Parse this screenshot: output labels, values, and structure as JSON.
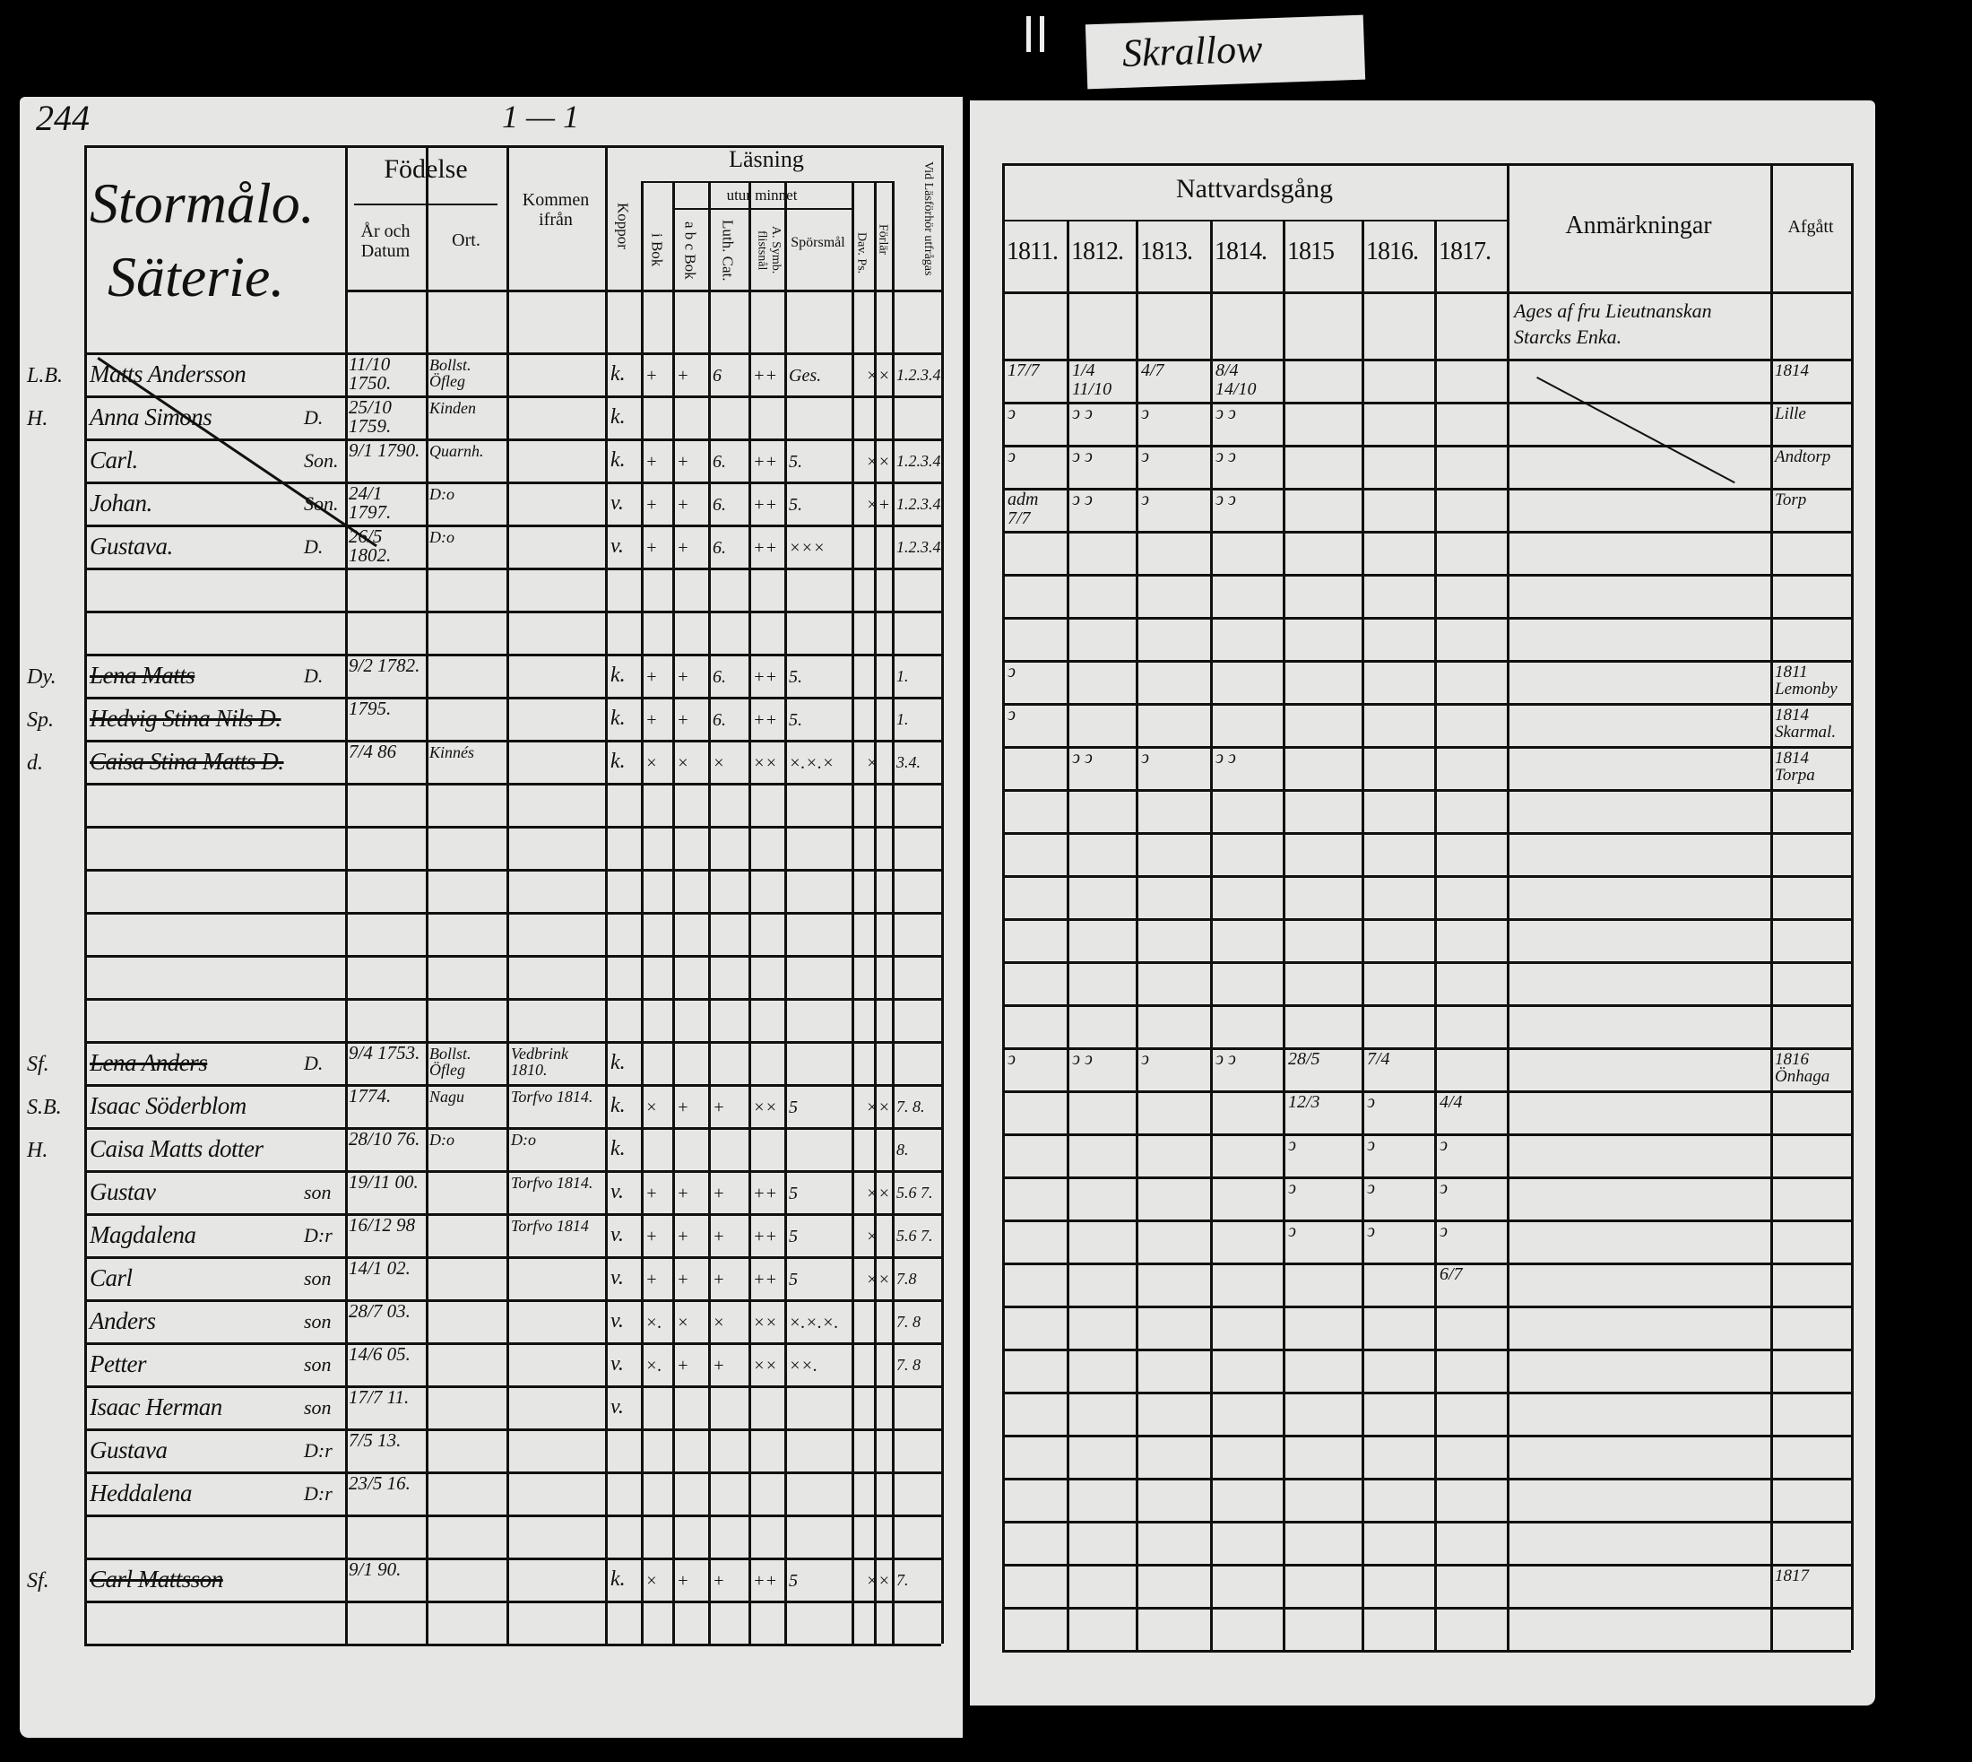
{
  "page_number": "244",
  "top_marks": "1 — 1",
  "tab_label": "Skrallow",
  "left": {
    "title_line1": "Stormålo.",
    "title_line2": "Säterie.",
    "headers": {
      "fodelse": "Födelse",
      "ar_och_datum": "År och Datum",
      "ort": "Ort.",
      "kommen_ifran": "Kommen ifrån",
      "koppor": "Koppor",
      "lasning": "Läsning",
      "utur_minnet": "utur minnet",
      "i_bok": "i Bok",
      "abc_bok": "a b c Bok",
      "luth_cat": "Luth. Cat.",
      "a_symb": "A. Symb. flistsnål",
      "sporsmal": "Spörsmål",
      "dav_ps": "Dav. Ps.",
      "forlar": "Förlär",
      "vid_lasforhor": "Vid Läsförhör utfrågas"
    },
    "rows": [
      {
        "mark": "L.B.",
        "name": "Matts Andersson",
        "rel": "",
        "date": "11/10 1750.",
        "ort": "Bollst. Öfleg",
        "kommen": "",
        "koppor": "k.",
        "c1": "+",
        "c2": "+",
        "c3": "6",
        "c4": "++",
        "c5": "Ges.",
        "c6": "",
        "c7": "××",
        "c8": "1.2.3.4",
        "struck": false
      },
      {
        "mark": "H.",
        "name": "Anna Simons",
        "rel": "D.",
        "date": "25/10 1759.",
        "ort": "Kinden",
        "kommen": "",
        "koppor": "k.",
        "c1": "",
        "c2": "",
        "c3": "",
        "c4": "",
        "c5": "",
        "c6": "",
        "c7": "",
        "c8": "",
        "struck": false
      },
      {
        "mark": "",
        "name": "Carl.",
        "rel": "Son.",
        "date": "9/1 1790.",
        "ort": "Quarnh.",
        "kommen": "",
        "koppor": "k.",
        "c1": "+",
        "c2": "+",
        "c3": "6.",
        "c4": "++",
        "c5": "5.",
        "c6": "",
        "c7": "××",
        "c8": "1.2.3.4",
        "struck": false
      },
      {
        "mark": "",
        "name": "Johan.",
        "rel": "Son.",
        "date": "24/1 1797.",
        "ort": "D:o",
        "kommen": "",
        "koppor": "v.",
        "c1": "+",
        "c2": "+",
        "c3": "6.",
        "c4": "++",
        "c5": "5.",
        "c6": "",
        "c7": "×+",
        "c8": "1.2.3.4",
        "struck": false
      },
      {
        "mark": "",
        "name": "Gustava.",
        "rel": "D.",
        "date": "26/5 1802.",
        "ort": "D:o",
        "kommen": "",
        "koppor": "v.",
        "c1": "+",
        "c2": "+",
        "c3": "6.",
        "c4": "++",
        "c5": "×××",
        "c6": "",
        "c7": "",
        "c8": "1.2.3.4",
        "struck": false
      },
      {},
      {},
      {
        "mark": "Dy.",
        "name": "Lena Matts",
        "rel": "D.",
        "date": "9/2 1782.",
        "ort": "",
        "kommen": "",
        "koppor": "k.",
        "c1": "+",
        "c2": "+",
        "c3": "6.",
        "c4": "++",
        "c5": "5.",
        "c6": "",
        "c7": "",
        "c8": "1.",
        "struck": true
      },
      {
        "mark": "Sp.",
        "name": "Hedvig Stina Nils D.",
        "rel": "",
        "date": "1795.",
        "ort": "",
        "kommen": "",
        "koppor": "k.",
        "c1": "+",
        "c2": "+",
        "c3": "6.",
        "c4": "++",
        "c5": "5.",
        "c6": "",
        "c7": "",
        "c8": "1.",
        "struck": true
      },
      {
        "mark": "d.",
        "name": "Caisa Stina Matts D.",
        "rel": "",
        "date": "7/4 86",
        "ort": "Kinnés",
        "kommen": "",
        "koppor": "k.",
        "c1": "×",
        "c2": "×",
        "c3": "×",
        "c4": "××",
        "c5": "×.×.×",
        "c6": "",
        "c7": "×",
        "c8": "3.4.",
        "struck": true
      },
      {},
      {},
      {},
      {},
      {},
      {},
      {
        "mark": "Sf.",
        "name": "Lena Anders",
        "rel": "D.",
        "date": "9/4 1753.",
        "ort": "Bollst. Öfleg",
        "kommen": "Vedbrink 1810.",
        "koppor": "k.",
        "c1": "",
        "c2": "",
        "c3": "",
        "c4": "",
        "c5": "",
        "c6": "",
        "c7": "",
        "c8": "",
        "struck": true
      },
      {
        "mark": "S.B.",
        "name": "Isaac Söderblom",
        "rel": "",
        "date": "1774.",
        "ort": "Nagu",
        "kommen": "Torfvo 1814.",
        "koppor": "k.",
        "c1": "×",
        "c2": "+",
        "c3": "+",
        "c4": "××",
        "c5": "5",
        "c6": "",
        "c7": "××",
        "c8": "7. 8.",
        "struck": false
      },
      {
        "mark": "H.",
        "name": "Caisa Matts dotter",
        "rel": "",
        "date": "28/10 76.",
        "ort": "D:o",
        "kommen": "D:o",
        "koppor": "k.",
        "c1": "",
        "c2": "",
        "c3": "",
        "c4": "",
        "c5": "",
        "c6": "",
        "c7": "",
        "c8": "8.",
        "struck": false
      },
      {
        "mark": "",
        "name": "Gustav",
        "rel": "son",
        "date": "19/11 00.",
        "ort": "",
        "kommen": "Torfvo 1814.",
        "koppor": "v.",
        "c1": "+",
        "c2": "+",
        "c3": "+",
        "c4": "++",
        "c5": "5",
        "c6": "",
        "c7": "××",
        "c8": "5.6 7.",
        "struck": false
      },
      {
        "mark": "",
        "name": "Magdalena",
        "rel": "D:r",
        "date": "16/12 98",
        "ort": "",
        "kommen": "Torfvo 1814",
        "koppor": "v.",
        "c1": "+",
        "c2": "+",
        "c3": "+",
        "c4": "++",
        "c5": "5",
        "c6": "",
        "c7": "×",
        "c8": "5.6 7.",
        "struck": false
      },
      {
        "mark": "",
        "name": "Carl",
        "rel": "son",
        "date": "14/1 02.",
        "ort": "",
        "kommen": "",
        "koppor": "v.",
        "c1": "+",
        "c2": "+",
        "c3": "+",
        "c4": "++",
        "c5": "5",
        "c6": "",
        "c7": "××",
        "c8": "7.8",
        "struck": false
      },
      {
        "mark": "",
        "name": "Anders",
        "rel": "son",
        "date": "28/7 03.",
        "ort": "",
        "kommen": "",
        "koppor": "v.",
        "c1": "×.",
        "c2": "×",
        "c3": "×",
        "c4": "××",
        "c5": "×.×.×.",
        "c6": "",
        "c7": "",
        "c8": "7. 8",
        "struck": false
      },
      {
        "mark": "",
        "name": "Petter",
        "rel": "son",
        "date": "14/6 05.",
        "ort": "",
        "kommen": "",
        "koppor": "v.",
        "c1": "×.",
        "c2": "+",
        "c3": "+",
        "c4": "××",
        "c5": "××.",
        "c6": "",
        "c7": "",
        "c8": "7. 8",
        "struck": false
      },
      {
        "mark": "",
        "name": "Isaac Herman",
        "rel": "son",
        "date": "17/7 11.",
        "ort": "",
        "kommen": "",
        "koppor": "v.",
        "c1": "",
        "c2": "",
        "c3": "",
        "c4": "",
        "c5": "",
        "c6": "",
        "c7": "",
        "c8": "",
        "struck": false
      },
      {
        "mark": "",
        "name": "Gustava",
        "rel": "D:r",
        "date": "7/5 13.",
        "ort": "",
        "kommen": "",
        "koppor": "",
        "c1": "",
        "c2": "",
        "c3": "",
        "c4": "",
        "c5": "",
        "c6": "",
        "c7": "",
        "c8": "",
        "struck": false
      },
      {
        "mark": "",
        "name": "Heddalena",
        "rel": "D:r",
        "date": "23/5 16.",
        "ort": "",
        "kommen": "",
        "koppor": "",
        "c1": "",
        "c2": "",
        "c3": "",
        "c4": "",
        "c5": "",
        "c6": "",
        "c7": "",
        "c8": "",
        "struck": false
      },
      {},
      {
        "mark": "Sf.",
        "name": "Carl Mattsson",
        "rel": "",
        "date": "9/1 90.",
        "ort": "",
        "kommen": "",
        "koppor": "k.",
        "c1": "×",
        "c2": "+",
        "c3": "+",
        "c4": "++",
        "c5": "5",
        "c6": "",
        "c7": "××",
        "c8": "7.",
        "struck": true
      }
    ]
  },
  "right": {
    "nattvardsgang": "Nattvardsgång",
    "years": [
      "1811.",
      "1812.",
      "1813.",
      "1814.",
      "1815",
      "1816.",
      "1817."
    ],
    "anmarkningar": "Anmärkningar",
    "afgatt": "Afgått",
    "remark": "Ages af fru Lieutnanskan Starcks Enka.",
    "rows": [
      {
        "y": [
          "17/7",
          "1/4  11/10",
          "4/7",
          "8/4  14/10",
          "",
          "",
          ""
        ],
        "afgatt": "1814"
      },
      {
        "y": [
          "ↄ",
          "ↄ  ↄ",
          "ↄ",
          "ↄ  ↄ",
          "",
          "",
          ""
        ],
        "afgatt": "Lille"
      },
      {
        "y": [
          "ↄ",
          "ↄ  ↄ",
          "ↄ",
          "ↄ  ↄ",
          "",
          "",
          ""
        ],
        "afgatt": "Andtorp"
      },
      {
        "y": [
          "adm 7/7",
          "ↄ  ↄ",
          "ↄ",
          "ↄ  ↄ",
          "",
          "",
          ""
        ],
        "afgatt": "Torp"
      },
      {},
      {},
      {},
      {
        "y": [
          "ↄ",
          "",
          "",
          "",
          "",
          "",
          ""
        ],
        "afgatt": "1811 Lemonby"
      },
      {
        "y": [
          "ↄ",
          "",
          "",
          "",
          "",
          "",
          ""
        ],
        "afgatt": "1814 Skarmal."
      },
      {
        "y": [
          "",
          "ↄ  ↄ",
          "ↄ",
          "ↄ  ↄ",
          "",
          "",
          ""
        ],
        "afgatt": "1814 Torpa"
      },
      {},
      {},
      {},
      {},
      {},
      {},
      {
        "y": [
          "ↄ",
          "ↄ  ↄ",
          "ↄ",
          "ↄ  ↄ",
          "28/5",
          "7/4",
          ""
        ],
        "afgatt": "1816 Önhaga"
      },
      {
        "y": [
          "",
          "",
          "",
          "",
          "12/3",
          "ↄ",
          "4/4"
        ],
        "afgatt": ""
      },
      {
        "y": [
          "",
          "",
          "",
          "",
          "ↄ",
          "ↄ",
          "ↄ"
        ],
        "afgatt": ""
      },
      {
        "y": [
          "",
          "",
          "",
          "",
          "ↄ",
          "ↄ",
          "ↄ"
        ],
        "afgatt": ""
      },
      {
        "y": [
          "",
          "",
          "",
          "",
          "ↄ",
          "ↄ",
          "ↄ"
        ],
        "afgatt": ""
      },
      {
        "y": [
          "",
          "",
          "",
          "",
          "",
          "",
          "6/7"
        ],
        "afgatt": ""
      },
      {},
      {},
      {},
      {},
      {},
      {},
      {
        "y": [
          "",
          "",
          "",
          "",
          "",
          "",
          ""
        ],
        "afgatt": "1817"
      }
    ]
  },
  "colors": {
    "paper": "#e6e6e4",
    "ink": "#111111",
    "background": "#000000"
  }
}
